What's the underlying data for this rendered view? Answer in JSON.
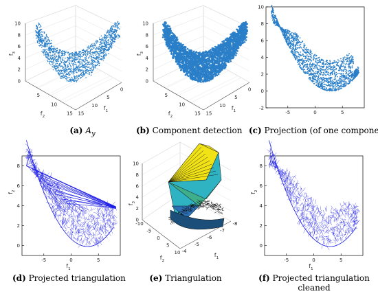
{
  "figure": {
    "panels": [
      {
        "letter": "(a)",
        "caption": "A",
        "caption_sub": "y"
      },
      {
        "letter": "(b)",
        "caption": "Component detection"
      },
      {
        "letter": "(c)",
        "caption": "Projection (of one component)"
      },
      {
        "letter": "(d)",
        "caption": "Projected triangulation"
      },
      {
        "letter": "(e)",
        "caption": "Triangulation"
      },
      {
        "letter": "(f)",
        "caption": "Projected triangulation",
        "caption_line2": "cleaned"
      }
    ]
  },
  "colors": {
    "scatter_blue": "#2a7fc8",
    "mesh_blue": "#1a1ae6",
    "surf_yellow": "#f2e316",
    "surf_teal": "#2fb3c2",
    "surf_green": "#3fae8a",
    "surf_blue": "#2b6fb5"
  },
  "chart_data": [
    {
      "type": "scatter",
      "id": "a",
      "projection": "3d",
      "zlabel": "f3",
      "xlabel": "f1",
      "ylabel": "f2",
      "z_ticks": [
        0,
        2,
        4,
        6,
        8,
        10
      ],
      "x_ticks": [
        0,
        5,
        10,
        15
      ],
      "y_ticks": [
        5,
        10,
        15
      ],
      "zlim": [
        0,
        10
      ]
    },
    {
      "type": "scatter",
      "id": "b",
      "projection": "3d",
      "zlabel": "f3",
      "xlabel": "f1",
      "ylabel": "f2",
      "z_ticks": [
        0,
        2,
        4,
        6,
        8,
        10
      ],
      "x_ticks": [
        0,
        5,
        10,
        15
      ],
      "y_ticks": [
        5,
        10,
        15
      ],
      "zlim": [
        0,
        10
      ]
    },
    {
      "type": "scatter",
      "id": "c",
      "xlabel": "",
      "ylabel": "",
      "x_ticks": [
        -5,
        0,
        5
      ],
      "y_ticks": [
        -2,
        0,
        2,
        4,
        6,
        8,
        10
      ],
      "xlim": [
        -9,
        9
      ],
      "ylim": [
        -2,
        10
      ]
    },
    {
      "type": "line",
      "id": "d",
      "xlabel": "f1",
      "ylabel": "f2",
      "x_ticks": [
        -5,
        0,
        5
      ],
      "y_ticks": [
        0,
        2,
        4,
        6,
        8
      ],
      "xlim": [
        -9,
        9
      ],
      "ylim": [
        -1,
        9
      ]
    },
    {
      "type": "area",
      "id": "e",
      "projection": "3d",
      "zlabel": "f3",
      "xlabel": "f1",
      "ylabel": "f2",
      "z_ticks": [
        0,
        2,
        4,
        6,
        8,
        10
      ],
      "x_ticks": [
        -4,
        -5,
        -6,
        -7,
        -8
      ],
      "y_ticks": [
        -10,
        -5,
        0,
        5,
        10
      ]
    },
    {
      "type": "line",
      "id": "f",
      "xlabel": "f1",
      "ylabel": "f2",
      "x_ticks": [
        -5,
        0,
        5
      ],
      "y_ticks": [
        0,
        2,
        4,
        6,
        8
      ],
      "xlim": [
        -9,
        9
      ],
      "ylim": [
        -1,
        9
      ]
    }
  ]
}
